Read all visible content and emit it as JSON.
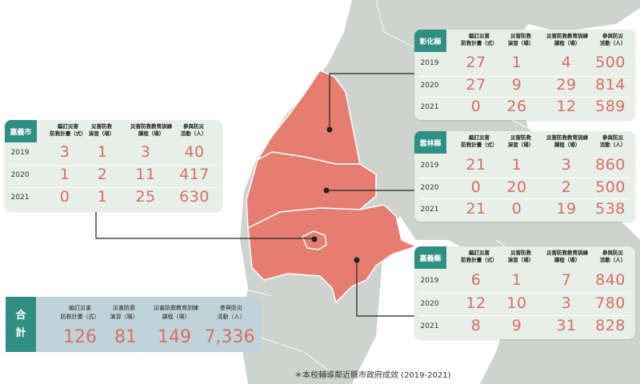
{
  "headers": {
    "col1": "編訂災害\n防救計畫（式）",
    "col2": "災害防救\n演習（場）",
    "col3": "災害防救教育訓練\n課程（場）",
    "col4": "參與防災\n活動（人）"
  },
  "cards": {
    "changhua": {
      "name": "彰化縣",
      "rows": [
        {
          "year": "2019",
          "v": [
            "27",
            "1",
            "4",
            "500"
          ]
        },
        {
          "year": "2020",
          "v": [
            "27",
            "9",
            "29",
            "814"
          ]
        },
        {
          "year": "2021",
          "v": [
            "0",
            "26",
            "12",
            "589"
          ]
        }
      ]
    },
    "yunlin": {
      "name": "雲林縣",
      "rows": [
        {
          "year": "2019",
          "v": [
            "21",
            "1",
            "3",
            "860"
          ]
        },
        {
          "year": "2020",
          "v": [
            "0",
            "20",
            "2",
            "500"
          ]
        },
        {
          "year": "2021",
          "v": [
            "21",
            "0",
            "19",
            "538"
          ]
        }
      ]
    },
    "chiayi_city": {
      "name": "嘉義市",
      "rows": [
        {
          "year": "2019",
          "v": [
            "3",
            "1",
            "3",
            "40"
          ]
        },
        {
          "year": "2020",
          "v": [
            "1",
            "2",
            "11",
            "417"
          ]
        },
        {
          "year": "2021",
          "v": [
            "0",
            "1",
            "25",
            "630"
          ]
        }
      ]
    },
    "chiayi_county": {
      "name": "嘉義縣",
      "rows": [
        {
          "year": "2019",
          "v": [
            "6",
            "1",
            "7",
            "840"
          ]
        },
        {
          "year": "2020",
          "v": [
            "12",
            "10",
            "3",
            "780"
          ]
        },
        {
          "year": "2021",
          "v": [
            "8",
            "9",
            "31",
            "828"
          ]
        }
      ]
    }
  },
  "total": {
    "label_top": "合",
    "label_bottom": "計",
    "values": [
      "126",
      "81",
      "149",
      "7,336"
    ]
  },
  "footnote": "＊本校輔導鄰近縣市政府成效 (2019-2021)",
  "colors": {
    "region": "#e57e70",
    "region_edge": "#ffffff",
    "land": "#cfd3cf",
    "accent": "#2f8f83",
    "number": "#d86f62",
    "card": "#e7efe8",
    "total_card": "#bfd3d9"
  }
}
